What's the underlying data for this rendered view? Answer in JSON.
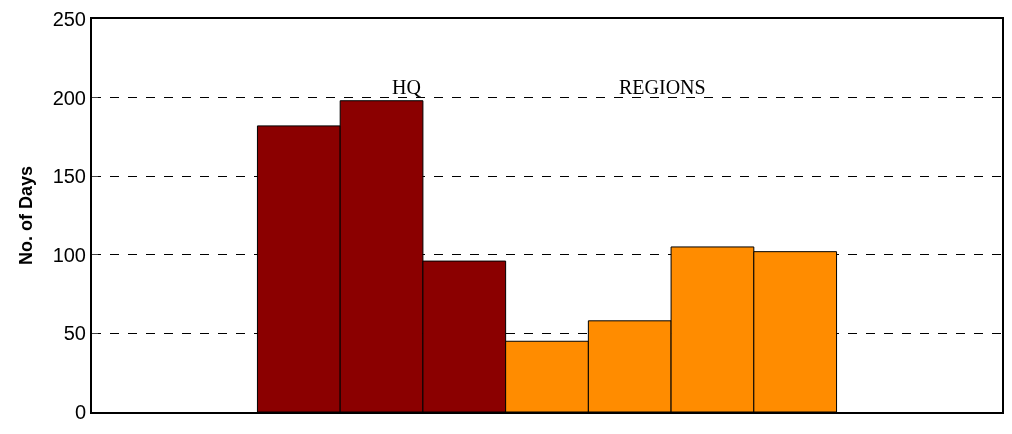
{
  "chart_data": {
    "type": "bar",
    "ylabel": "No. of Days",
    "categories": [
      null,
      null,
      null,
      null,
      null,
      null,
      null,
      null,
      null,
      null,
      null
    ],
    "values": [
      null,
      null,
      182,
      198,
      96,
      45,
      58,
      105,
      102,
      null,
      null
    ],
    "colors": [
      "#8b0000",
      "#8b0000",
      "#8b0000",
      "#8b0000",
      "#8b0000",
      "#ff8c00",
      "#ff8c00",
      "#ff8c00",
      "#ff8c00",
      "#ff8c00",
      "#ff8c00"
    ],
    "ylim": [
      0,
      250
    ],
    "yticks": [
      0,
      50,
      100,
      150,
      200,
      250
    ],
    "grid": "y",
    "tick_labels": "y",
    "annotations": [
      "HQ",
      "REGIONS"
    ]
  }
}
